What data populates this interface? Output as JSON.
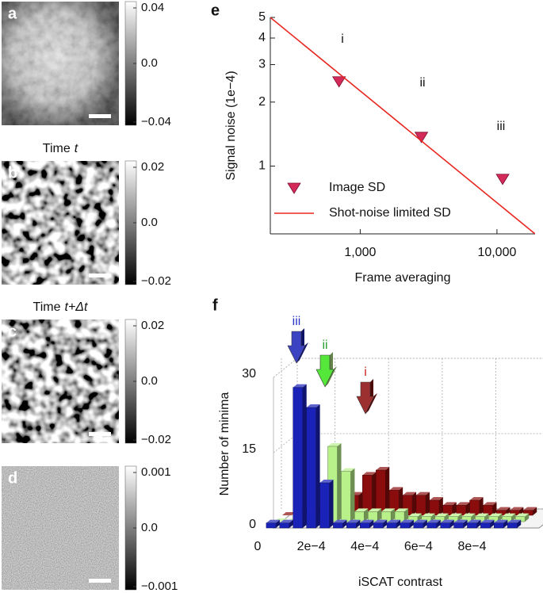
{
  "images": [
    {
      "label": "a",
      "colorbar": [
        "0.04",
        "0.0",
        "−0.04"
      ]
    },
    {
      "label": "b",
      "title": {
        "text": "Time",
        "variable": "t"
      },
      "colorbar": [
        "0.02",
        "0.0",
        "−0.02"
      ]
    },
    {
      "label": "c",
      "title": {
        "text": "Time",
        "variable": "t+Δt"
      },
      "colorbar": [
        "0.02",
        "0.0",
        "−0.02"
      ]
    },
    {
      "label": "d",
      "colorbar": [
        "0.001",
        "0.0",
        "−0.001"
      ]
    }
  ],
  "chart_data": [
    {
      "panel": "e",
      "type": "scatter",
      "xlabel": "Frame averaging",
      "ylabel": "Signal noise (1e−4)",
      "xscale": "log",
      "yscale": "log",
      "xlim": [
        220,
        19000
      ],
      "ylim": [
        0.48,
        5
      ],
      "xticks": [
        {
          "value": 1000,
          "label": "1,000"
        },
        {
          "value": 10000,
          "label": "10,000"
        }
      ],
      "yticks": [
        1,
        2,
        3,
        4,
        5
      ],
      "legend": "lower left",
      "series": [
        {
          "name": "Image SD",
          "color": "#d42a5a",
          "marker": "triangle-down",
          "x": [
            700,
            2800,
            11000
          ],
          "values": [
            2.5,
            1.37,
            0.87
          ]
        },
        {
          "name": "Shot-noise limited SD",
          "color": "#e8261f",
          "marker": "line",
          "x": [
            220,
            19000
          ],
          "values": [
            5,
            0.48
          ]
        }
      ],
      "annotations": [
        "i",
        "ii",
        "iii"
      ]
    },
    {
      "panel": "f",
      "type": "bar3d",
      "xlabel": "iSCAT contrast",
      "ylabel": "Number of minima",
      "xlim": [
        0,
        0.00105
      ],
      "ylim": [
        0,
        30
      ],
      "xticks": [
        0,
        {
          "value": 0.0002,
          "label": "2e−4"
        },
        {
          "value": 0.0004,
          "label": "4e−4"
        },
        {
          "value": 0.0006,
          "label": "6e−4"
        },
        {
          "value": 0.0008,
          "label": "8e−4"
        }
      ],
      "yticks": [
        0,
        15,
        30
      ],
      "x": [
        5e-05,
        0.0001,
        0.00015,
        0.0002,
        0.00025,
        0.0003,
        0.00035,
        0.0004,
        0.00045,
        0.0005,
        0.00055,
        0.0006,
        0.00065,
        0.0007,
        0.00075,
        0.0008,
        0.00085,
        0.0009,
        0.00095
      ],
      "series": [
        {
          "name": "iii",
          "color": "#1a22b8",
          "values": [
            1,
            1,
            28,
            24,
            9,
            1,
            1,
            1,
            1,
            1,
            1,
            1,
            1,
            1,
            1,
            1,
            1,
            1,
            1
          ]
        },
        {
          "name": "ii",
          "color": "#b8f08a",
          "values": [
            0,
            0,
            1,
            1,
            15,
            10,
            2,
            2,
            2,
            2,
            1,
            1,
            1,
            1,
            1,
            1,
            1,
            1,
            1
          ]
        },
        {
          "name": "i",
          "color": "#8b0c0c",
          "values": [
            0,
            1,
            1,
            2,
            2,
            4,
            8,
            9,
            5,
            4,
            4,
            3,
            2,
            2,
            3,
            2,
            1,
            1,
            1
          ]
        }
      ]
    }
  ]
}
